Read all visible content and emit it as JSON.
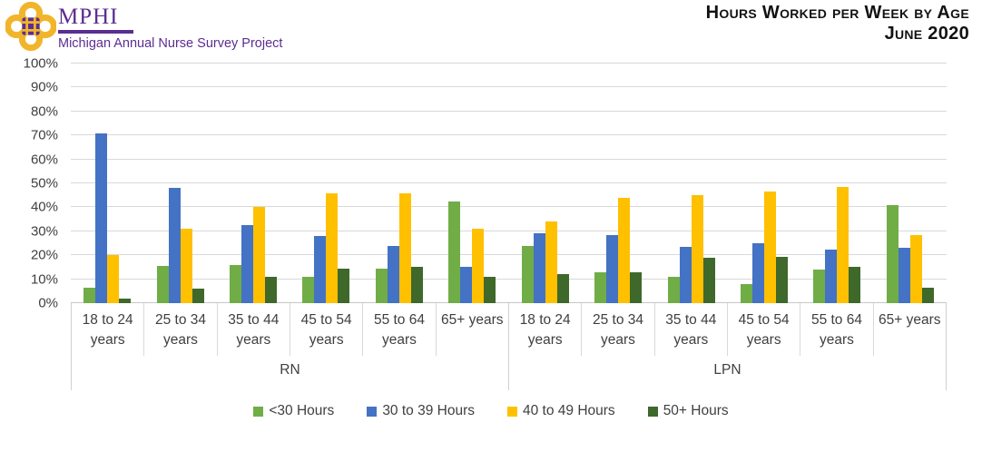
{
  "header": {
    "brand": "MPHI",
    "brand_subtitle": "Michigan Annual Nurse Survey Project",
    "title_line1": "Hours Worked per Week by Age",
    "title_line2": "June 2020"
  },
  "chart_data": {
    "type": "bar",
    "title": "Hours Worked per Week by Age",
    "subtitle": "June 2020",
    "xlabel": "",
    "ylabel": "",
    "ylim": [
      0,
      100
    ],
    "grid": true,
    "legend_position": "bottom",
    "y_ticks": [
      "0%",
      "10%",
      "20%",
      "30%",
      "40%",
      "50%",
      "60%",
      "70%",
      "80%",
      "90%",
      "100%"
    ],
    "series": [
      {
        "name": "<30 Hours",
        "color": "#70AD47"
      },
      {
        "name": "30 to 39 Hours",
        "color": "#4472C4"
      },
      {
        "name": "40 to 49 Hours",
        "color": "#FFC000"
      },
      {
        "name": "50+ Hours",
        "color": "#3F682B"
      }
    ],
    "sections": [
      {
        "label": "RN",
        "groups": [
          {
            "label": "18 to 24 years",
            "label_lines": [
              "18 to 24",
              "years"
            ],
            "values": [
              6.5,
              71,
              20,
              2
            ]
          },
          {
            "label": "25 to 34 years",
            "label_lines": [
              "25 to 34",
              "years"
            ],
            "values": [
              15.5,
              48,
              31,
              6
            ]
          },
          {
            "label": "35 to 44 years",
            "label_lines": [
              "35 to 44",
              "years"
            ],
            "values": [
              16,
              32.5,
              40,
              11
            ]
          },
          {
            "label": "45 to 54 years",
            "label_lines": [
              "45 to 54",
              "years"
            ],
            "values": [
              11,
              28,
              46,
              14.5
            ]
          },
          {
            "label": "55 to 64 years",
            "label_lines": [
              "55 to 64",
              "years"
            ],
            "values": [
              14.5,
              24,
              46,
              15
            ]
          },
          {
            "label": "65+ years",
            "label_lines": [
              "65+ years"
            ],
            "values": [
              42.5,
              15,
              31,
              11
            ]
          }
        ]
      },
      {
        "label": "LPN",
        "groups": [
          {
            "label": "18 to 24 years",
            "label_lines": [
              "18 to 24",
              "years"
            ],
            "values": [
              24,
              29,
              34,
              12
            ]
          },
          {
            "label": "25 to 34 years",
            "label_lines": [
              "25 to 34",
              "years"
            ],
            "values": [
              13,
              28.5,
              44,
              13
            ]
          },
          {
            "label": "35 to 44 years",
            "label_lines": [
              "35 to 44",
              "years"
            ],
            "values": [
              11,
              23.5,
              45,
              19
            ]
          },
          {
            "label": "45 to 54 years",
            "label_lines": [
              "45 to 54",
              "years"
            ],
            "values": [
              8,
              25,
              46.5,
              19.5
            ]
          },
          {
            "label": "55 to 64 years",
            "label_lines": [
              "55 to 64",
              "years"
            ],
            "values": [
              14,
              22.5,
              48.5,
              15
            ]
          },
          {
            "label": "65+ years",
            "label_lines": [
              "65+ years"
            ],
            "values": [
              41,
              23,
              28.5,
              6.5
            ]
          }
        ]
      }
    ]
  }
}
